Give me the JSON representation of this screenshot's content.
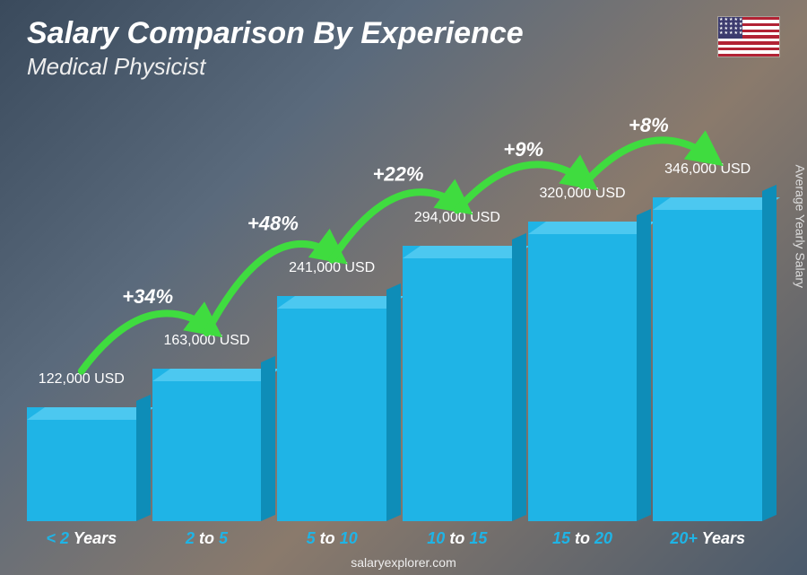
{
  "title": "Salary Comparison By Experience",
  "subtitle": "Medical Physicist",
  "ylabel": "Average Yearly Salary",
  "footer": "salaryexplorer.com",
  "flag_country": "usa",
  "chart": {
    "type": "bar",
    "bar_front_color": "#1fb4e6",
    "bar_top_color": "#4cc8f0",
    "bar_side_color": "#0e8db8",
    "percent_color": "#3fdc3f",
    "value_label_color": "#ffffff",
    "value_fontsize": 16,
    "pct_fontsize": 22,
    "xlabel_fontsize": 18,
    "ymax": 346000,
    "bars": [
      {
        "category_html": "<span class='num'>&lt; 2</span> <span class='unit'>Years</span>",
        "value": 122000,
        "value_label": "122,000 USD",
        "pct": null
      },
      {
        "category_html": "<span class='num'>2</span> <span class='unit'>to</span> <span class='num'>5</span>",
        "value": 163000,
        "value_label": "163,000 USD",
        "pct": "+34%"
      },
      {
        "category_html": "<span class='num'>5</span> <span class='unit'>to</span> <span class='num'>10</span>",
        "value": 241000,
        "value_label": "241,000 USD",
        "pct": "+48%"
      },
      {
        "category_html": "<span class='num'>10</span> <span class='unit'>to</span> <span class='num'>15</span>",
        "value": 294000,
        "value_label": "294,000 USD",
        "pct": "+22%"
      },
      {
        "category_html": "<span class='num'>15</span> <span class='unit'>to</span> <span class='num'>20</span>",
        "value": 320000,
        "value_label": "320,000 USD",
        "pct": "+9%"
      },
      {
        "category_html": "<span class='num'>20+</span> <span class='unit'>Years</span>",
        "value": 346000,
        "value_label": "346,000 USD",
        "pct": "+8%"
      }
    ]
  }
}
